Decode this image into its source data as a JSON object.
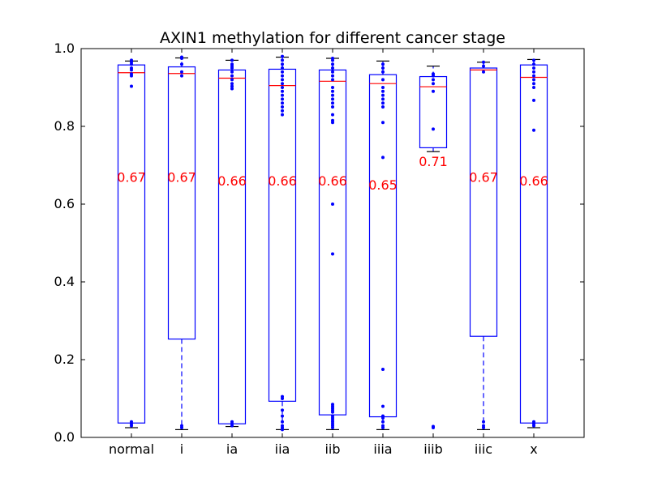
{
  "chart_data": {
    "type": "box",
    "title": "AXIN1 methylation for different cancer stage",
    "xlabel": "",
    "ylabel": "",
    "ylim": [
      0,
      1.0
    ],
    "yticks": [
      "0.0",
      "0.2",
      "0.4",
      "0.6",
      "0.8",
      "1.0"
    ],
    "categories": [
      "normal",
      "i",
      "ia",
      "iia",
      "iib",
      "iiia",
      "iiib",
      "iiic",
      "x"
    ],
    "colors": {
      "box": "#0000ff",
      "median": "#ff0000",
      "label": "#ff0000",
      "axis": "#000000"
    },
    "boxes": [
      {
        "category": "normal",
        "q1": 0.037,
        "median": 0.938,
        "q3": 0.958,
        "whisker_low": 0.025,
        "whisker_high": 0.968,
        "mean_label": "0.67",
        "mean": 0.67,
        "outliers": [
          0.903,
          0.93,
          0.935,
          0.945,
          0.95,
          0.96,
          0.965,
          0.97,
          0.03,
          0.035,
          0.04
        ]
      },
      {
        "category": "i",
        "q1": 0.253,
        "median": 0.936,
        "q3": 0.953,
        "whisker_low": 0.02,
        "whisker_high": 0.976,
        "mean_label": "0.67",
        "mean": 0.67,
        "outliers": [
          0.93,
          0.94,
          0.96,
          0.975,
          0.978,
          0.025,
          0.03
        ]
      },
      {
        "category": "ia",
        "q1": 0.035,
        "median": 0.924,
        "q3": 0.945,
        "whisker_low": 0.028,
        "whisker_high": 0.97,
        "mean_label": "0.66",
        "mean": 0.66,
        "outliers": [
          0.897,
          0.903,
          0.91,
          0.92,
          0.93,
          0.94,
          0.95,
          0.955,
          0.96,
          0.97,
          0.03,
          0.035,
          0.04
        ]
      },
      {
        "category": "iia",
        "q1": 0.093,
        "median": 0.905,
        "q3": 0.947,
        "whisker_low": 0.02,
        "whisker_high": 0.978,
        "mean_label": "0.66",
        "mean": 0.66,
        "outliers": [
          0.83,
          0.84,
          0.85,
          0.86,
          0.87,
          0.88,
          0.89,
          0.9,
          0.91,
          0.92,
          0.93,
          0.94,
          0.95,
          0.96,
          0.97,
          0.98,
          0.1,
          0.105,
          0.07,
          0.055,
          0.04,
          0.03,
          0.025,
          0.02
        ]
      },
      {
        "category": "iib",
        "q1": 0.058,
        "median": 0.916,
        "q3": 0.945,
        "whisker_low": 0.02,
        "whisker_high": 0.975,
        "mean_label": "0.66",
        "mean": 0.66,
        "outliers": [
          0.6,
          0.472,
          0.81,
          0.815,
          0.83,
          0.85,
          0.86,
          0.87,
          0.88,
          0.89,
          0.9,
          0.92,
          0.93,
          0.94,
          0.95,
          0.96,
          0.97,
          0.975,
          0.085,
          0.08,
          0.075,
          0.07,
          0.065,
          0.055,
          0.05,
          0.045,
          0.04,
          0.035,
          0.03,
          0.025
        ]
      },
      {
        "category": "iiia",
        "q1": 0.053,
        "median": 0.91,
        "q3": 0.933,
        "whisker_low": 0.02,
        "whisker_high": 0.968,
        "mean_label": "0.65",
        "mean": 0.65,
        "outliers": [
          0.72,
          0.81,
          0.85,
          0.86,
          0.87,
          0.88,
          0.89,
          0.9,
          0.92,
          0.94,
          0.95,
          0.96,
          0.175,
          0.08,
          0.055,
          0.05,
          0.04,
          0.03,
          0.025
        ]
      },
      {
        "category": "iiib",
        "q1": 0.745,
        "median": 0.902,
        "q3": 0.928,
        "whisker_low": 0.735,
        "whisker_high": 0.955,
        "mean_label": "0.71",
        "mean": 0.71,
        "outliers": [
          0.793,
          0.89,
          0.91,
          0.92,
          0.93,
          0.935,
          0.028,
          0.025
        ]
      },
      {
        "category": "iiic",
        "q1": 0.26,
        "median": 0.945,
        "q3": 0.95,
        "whisker_low": 0.02,
        "whisker_high": 0.965,
        "mean_label": "0.67",
        "mean": 0.67,
        "outliers": [
          0.94,
          0.955,
          0.965,
          0.025,
          0.03,
          0.04
        ]
      },
      {
        "category": "x",
        "q1": 0.037,
        "median": 0.926,
        "q3": 0.958,
        "whisker_low": 0.025,
        "whisker_high": 0.972,
        "mean_label": "0.66",
        "mean": 0.66,
        "outliers": [
          0.79,
          0.867,
          0.9,
          0.91,
          0.92,
          0.93,
          0.94,
          0.95,
          0.96,
          0.97,
          0.03,
          0.035,
          0.04
        ]
      }
    ]
  }
}
